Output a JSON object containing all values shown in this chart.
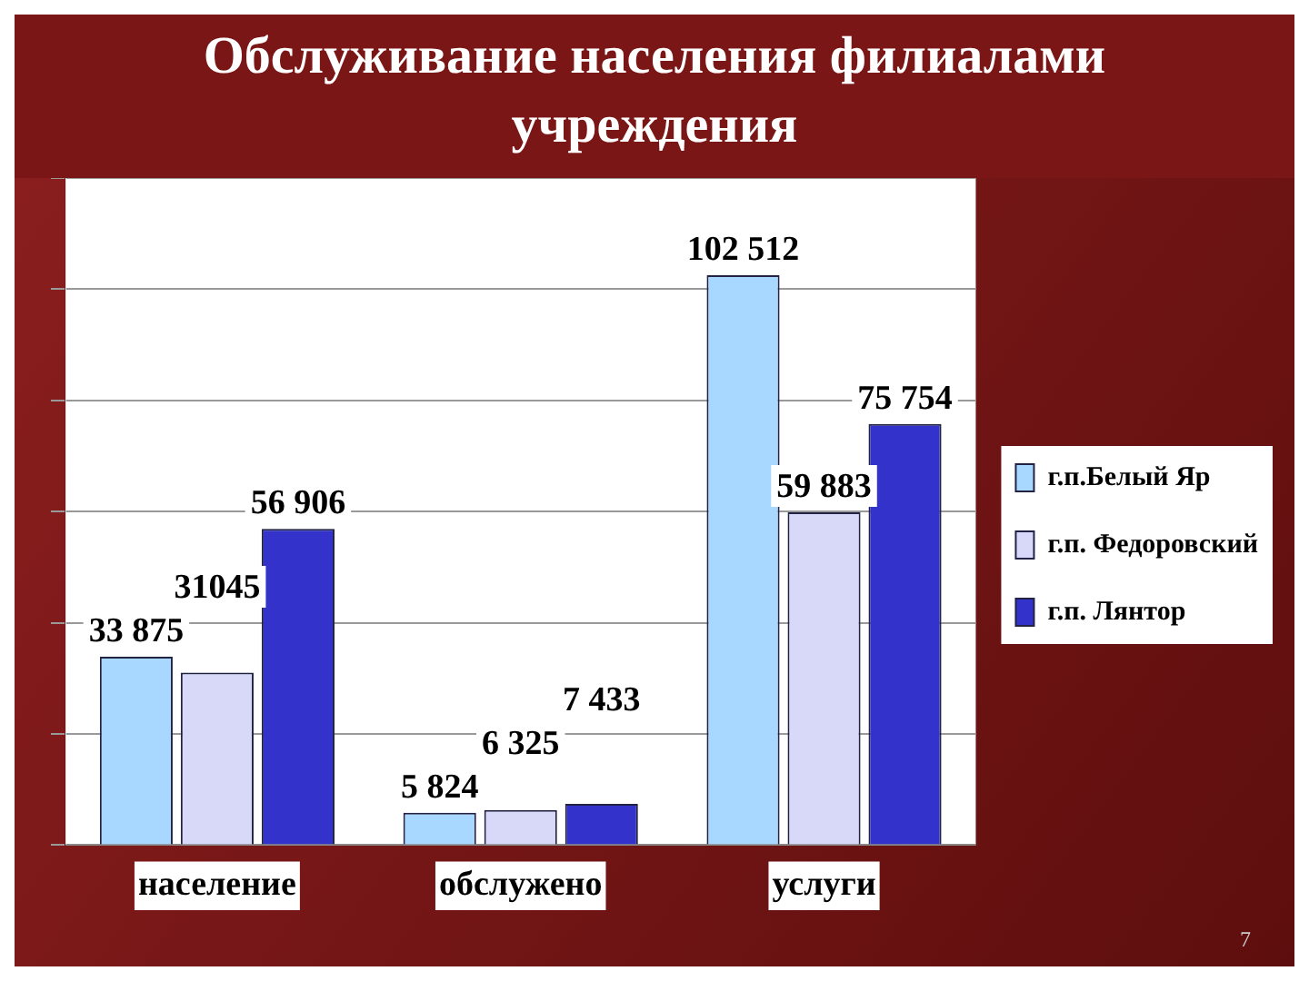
{
  "chart_data": {
    "type": "bar",
    "title": "Обслуживание населения филиалами учреждения",
    "categories": [
      "население",
      "обслужено",
      "услуги"
    ],
    "series": [
      {
        "name": "г.п.Белый Яр",
        "color": "#a8d8ff",
        "values": [
          33875,
          5824,
          102512
        ],
        "value_labels": [
          "33 875",
          "5 824",
          "102 512"
        ]
      },
      {
        "name": "г.п. Федоровский",
        "color": "#d8d8f8",
        "values": [
          31045,
          6325,
          59883
        ],
        "value_labels": [
          "31045",
          "6 325",
          "59 883"
        ]
      },
      {
        "name": "г.п. Лянтор",
        "color": "#3333cc",
        "values": [
          56906,
          7433,
          75754
        ],
        "value_labels": [
          "56 906",
          "7 433",
          "75 754"
        ]
      }
    ],
    "grid": "y",
    "legend": "right",
    "tick_labels": "x",
    "annotations": [
      "7"
    ]
  }
}
